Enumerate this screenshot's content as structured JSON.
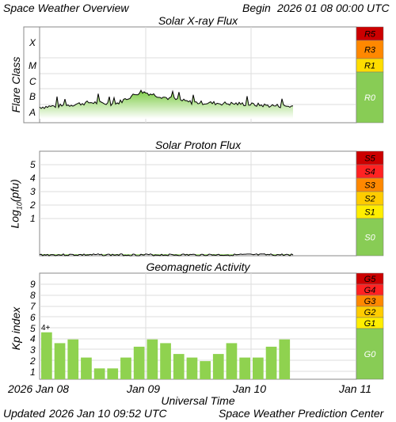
{
  "header": {
    "title": "Space Weather Overview",
    "begin_label": "Begin",
    "begin_date": "2026 01 08 00:00 UTC"
  },
  "panels": {
    "xray": {
      "title": "Solar X-ray Flux",
      "ylabel": "Flare Class",
      "classes": [
        "X",
        "M",
        "C",
        "B",
        "A"
      ],
      "scale": [
        {
          "label": "R5",
          "color": "#cc0000"
        },
        {
          "label": "R3",
          "color": "#ff8800"
        },
        {
          "label": "R1",
          "color": "#ffdd00"
        },
        {
          "label": "R0",
          "color": "#88cc55"
        }
      ]
    },
    "proton": {
      "title": "Solar Proton Flux",
      "ylabel_main": "Log",
      "ylabel_sub": "10",
      "ylabel_unit": "(pfu)",
      "ticks": [
        "5",
        "4",
        "3",
        "2",
        "1"
      ],
      "scale": [
        {
          "label": "S5",
          "color": "#cc0000"
        },
        {
          "label": "S4",
          "color": "#ff2222"
        },
        {
          "label": "S3",
          "color": "#ff8800"
        },
        {
          "label": "S2",
          "color": "#ffcc00"
        },
        {
          "label": "S1",
          "color": "#ffee00"
        },
        {
          "label": "S0",
          "color": "#88cc55"
        }
      ]
    },
    "kp": {
      "title": "Geomagnetic Activity",
      "ylabel": "Kp index",
      "ticks": [
        "9",
        "8",
        "7",
        "6",
        "5",
        "4",
        "3",
        "2",
        "1"
      ],
      "peak_label": "4+",
      "scale": [
        {
          "label": "G5",
          "color": "#cc0000"
        },
        {
          "label": "G4",
          "color": "#ff2222"
        },
        {
          "label": "G3",
          "color": "#ff8800"
        },
        {
          "label": "G2",
          "color": "#ffcc00"
        },
        {
          "label": "G1",
          "color": "#ffee00"
        },
        {
          "label": "G0",
          "color": "#88cc55"
        }
      ]
    }
  },
  "xaxis": {
    "labels": [
      "2026 Jan 08",
      "Jan 09",
      "Jan 10",
      "Jan 11"
    ],
    "title": "Universal Time"
  },
  "footer": {
    "updated_label": "Updated",
    "updated_time": "2026 Jan 10 09:52 UTC",
    "source": "Space Weather Prediction Center"
  },
  "chart_data": [
    {
      "type": "area",
      "title": "Solar X-ray Flux",
      "ylabel": "Flare Class",
      "y_classes": [
        "A",
        "B",
        "C",
        "M",
        "X"
      ],
      "x": [
        "2026-01-08",
        "2026-01-09",
        "2026-01-10",
        "2026-01-11"
      ],
      "approx_level_class_units": [
        1.6,
        1.7,
        1.9,
        1.8,
        2.6,
        2.2,
        1.9,
        1.85,
        1.8,
        1.7,
        1.65
      ],
      "scale": [
        "R0",
        "R1",
        "R3",
        "R5"
      ]
    },
    {
      "type": "area",
      "title": "Solar Proton Flux",
      "ylabel": "Log10(pfu)",
      "y_ticks": [
        1,
        2,
        3,
        4,
        5
      ],
      "approx_level": -0.7,
      "scale": [
        "S0",
        "S1",
        "S2",
        "S3",
        "S4",
        "S5"
      ]
    },
    {
      "type": "bar",
      "title": "Geomagnetic Activity",
      "ylabel": "Kp index",
      "ylim": [
        0,
        9
      ],
      "values": [
        4.33,
        3.33,
        3.67,
        2.0,
        1.0,
        1.0,
        2.0,
        3.0,
        3.67,
        3.33,
        2.33,
        2.0,
        1.67,
        2.33,
        3.33,
        2.0,
        2.0,
        3.0,
        3.67
      ],
      "peak_label": "4+",
      "scale": [
        "G0",
        "G1",
        "G2",
        "G3",
        "G4",
        "G5"
      ]
    }
  ]
}
